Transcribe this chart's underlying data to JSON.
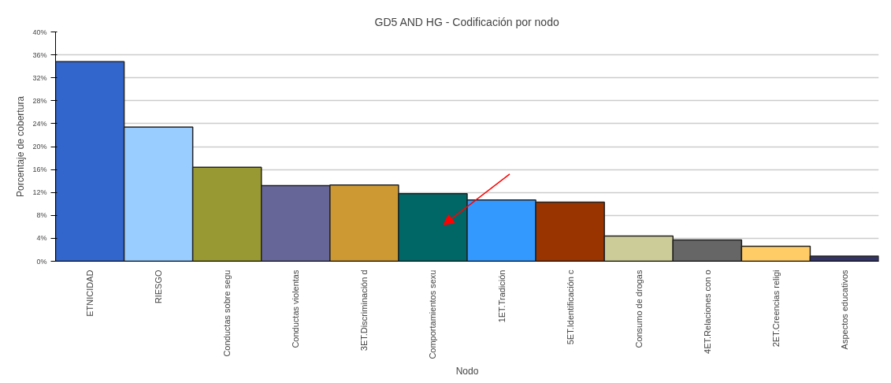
{
  "chart_data": {
    "type": "bar",
    "title": "GD5 AND HG - Codificación por nodo",
    "xlabel": "Nodo",
    "ylabel": "Porcentaje de cobertura",
    "categories": [
      "ETNICIDAD",
      "RIESGO",
      "Conductas sobre segu",
      "Conductas violentas",
      "3ET.Discriminación d",
      "Comportamientos sexu",
      "1ET.Tradición",
      "5ET.Identificación c",
      "Consumo de drogas",
      "4ET.Relaciones con o",
      "2ET.Creencias religi",
      "Aspectos educativos"
    ],
    "values": [
      34.8,
      23.4,
      16.4,
      13.2,
      13.3,
      11.8,
      10.7,
      10.3,
      4.4,
      3.7,
      2.6,
      0.9
    ],
    "colors": [
      "#3366cc",
      "#99ccff",
      "#999933",
      "#666699",
      "#cc9933",
      "#006666",
      "#3399ff",
      "#993300",
      "#cccc99",
      "#666666",
      "#ffcc66",
      "#333366"
    ],
    "ylim": [
      0,
      40
    ],
    "yticks": [
      {
        "value": 0,
        "label": "0%"
      },
      {
        "value": 4,
        "label": "4%"
      },
      {
        "value": 8,
        "label": "8%"
      },
      {
        "value": 12,
        "label": "12%"
      },
      {
        "value": 16,
        "label": "16%"
      },
      {
        "value": 20,
        "label": "20%"
      },
      {
        "value": 24,
        "label": "24%"
      },
      {
        "value": 28,
        "label": "28%"
      },
      {
        "value": 32,
        "label": "32%"
      },
      {
        "value": 36,
        "label": "36%"
      },
      {
        "value": 40,
        "label": "40%"
      }
    ],
    "grid": "y"
  }
}
